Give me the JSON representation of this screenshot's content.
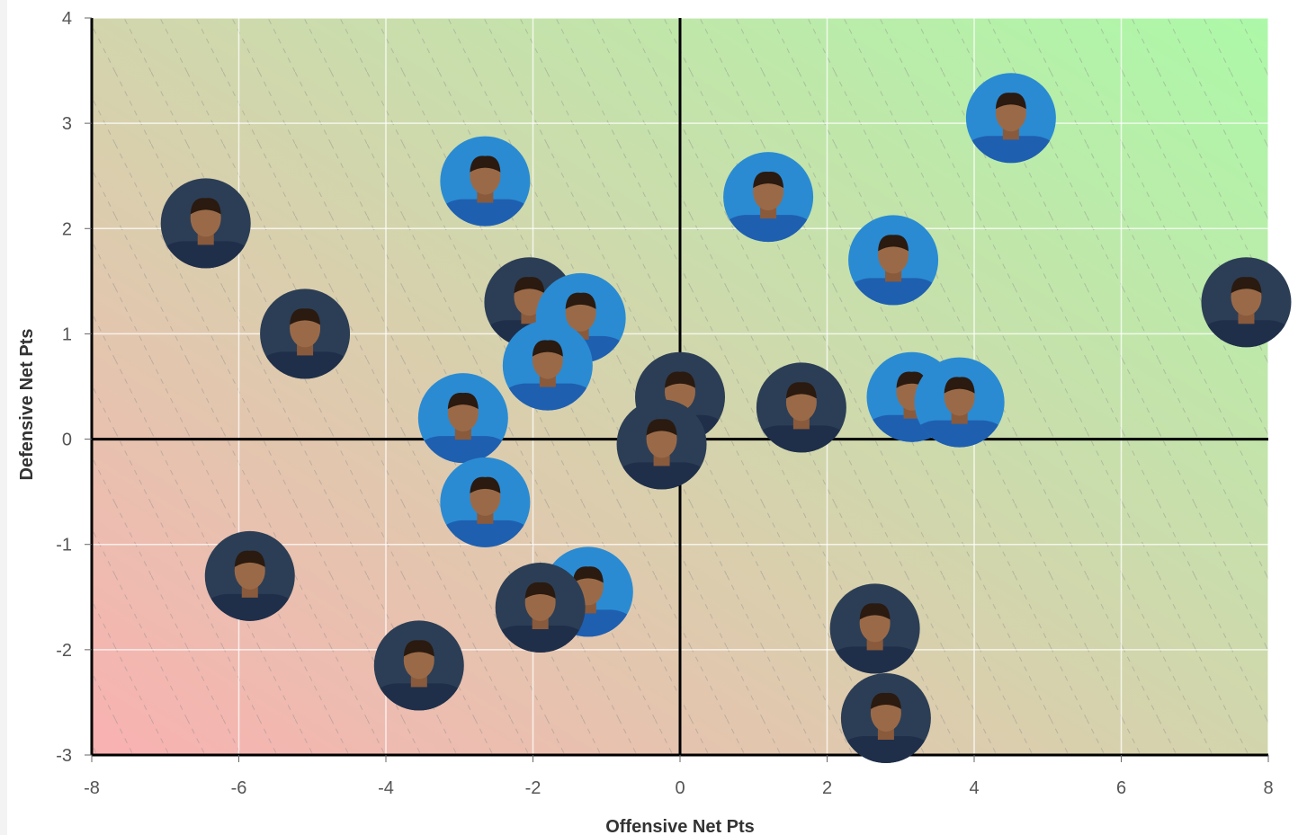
{
  "chart_data": {
    "type": "scatter",
    "title": "",
    "xlabel": "Offensive Net Pts",
    "ylabel": "Defensive Net Pts",
    "xlim": [
      -8,
      8
    ],
    "ylim": [
      -3,
      4
    ],
    "x_ticks": [
      "-8",
      "-6",
      "-4",
      "-2",
      "0",
      "2",
      "4",
      "6",
      "8"
    ],
    "y_ticks": [
      "4",
      "3",
      "2",
      "1",
      "0",
      "-1",
      "-2",
      "-3"
    ],
    "grid": true,
    "quadrant_lines": {
      "x": 0,
      "y": 0
    },
    "background_gradient": {
      "low": "#f9b1b1",
      "high": "#acf9a8"
    },
    "team_colors": {
      "blue": "#2a8bd3",
      "navy": "#2c3e55"
    },
    "points": [
      {
        "x": 4.5,
        "y": 3.05,
        "team": "blue"
      },
      {
        "x": -2.65,
        "y": 2.45,
        "team": "blue"
      },
      {
        "x": -6.45,
        "y": 2.05,
        "team": "navy"
      },
      {
        "x": 1.2,
        "y": 2.3,
        "team": "blue"
      },
      {
        "x": 2.9,
        "y": 1.7,
        "team": "blue"
      },
      {
        "x": 7.7,
        "y": 1.3,
        "team": "navy"
      },
      {
        "x": -5.1,
        "y": 1.0,
        "team": "navy"
      },
      {
        "x": -2.05,
        "y": 1.3,
        "team": "navy"
      },
      {
        "x": -1.35,
        "y": 1.15,
        "team": "blue"
      },
      {
        "x": -1.8,
        "y": 0.7,
        "team": "blue"
      },
      {
        "x": 0.0,
        "y": 0.4,
        "team": "navy"
      },
      {
        "x": -2.95,
        "y": 0.2,
        "team": "blue"
      },
      {
        "x": -0.25,
        "y": -0.05,
        "team": "navy"
      },
      {
        "x": 1.65,
        "y": 0.3,
        "team": "navy"
      },
      {
        "x": 3.15,
        "y": 0.4,
        "team": "blue"
      },
      {
        "x": 3.8,
        "y": 0.35,
        "team": "blue"
      },
      {
        "x": -2.65,
        "y": -0.6,
        "team": "blue"
      },
      {
        "x": -5.85,
        "y": -1.3,
        "team": "navy"
      },
      {
        "x": -1.25,
        "y": -1.45,
        "team": "blue"
      },
      {
        "x": -1.9,
        "y": -1.6,
        "team": "navy"
      },
      {
        "x": 2.65,
        "y": -1.8,
        "team": "navy"
      },
      {
        "x": -3.55,
        "y": -2.15,
        "team": "navy"
      },
      {
        "x": 2.8,
        "y": -2.65,
        "team": "navy"
      }
    ]
  }
}
